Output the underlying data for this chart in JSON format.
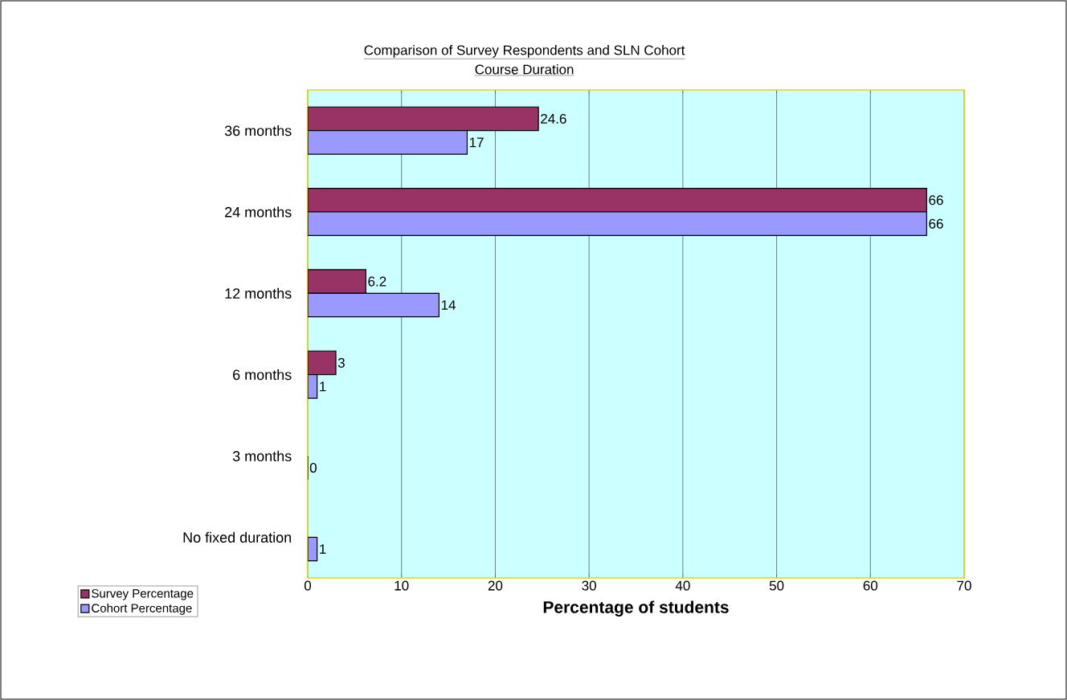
{
  "chart_data": {
    "type": "bar",
    "orientation": "horizontal",
    "title": "Comparison of Survey Respondents and SLN Cohort",
    "subtitle": "Course Duration",
    "xlabel": "Percentage of students",
    "categories": [
      "36 months",
      "24 months",
      "12 months",
      "6 months",
      "3 months",
      "No fixed duration"
    ],
    "series": [
      {
        "name": "Survey Percentage",
        "color": "#993366",
        "values": [
          24.6,
          66,
          6.2,
          3,
          null,
          null
        ]
      },
      {
        "name": "Cohort Percentage",
        "color": "#9999ff",
        "values": [
          17,
          66,
          14,
          1,
          0,
          1
        ]
      }
    ],
    "xlim": [
      0,
      70
    ],
    "xticks": [
      0,
      10,
      20,
      30,
      40,
      50,
      60,
      70
    ],
    "grid": "x",
    "legend": "bottom left",
    "data_labels": true
  }
}
